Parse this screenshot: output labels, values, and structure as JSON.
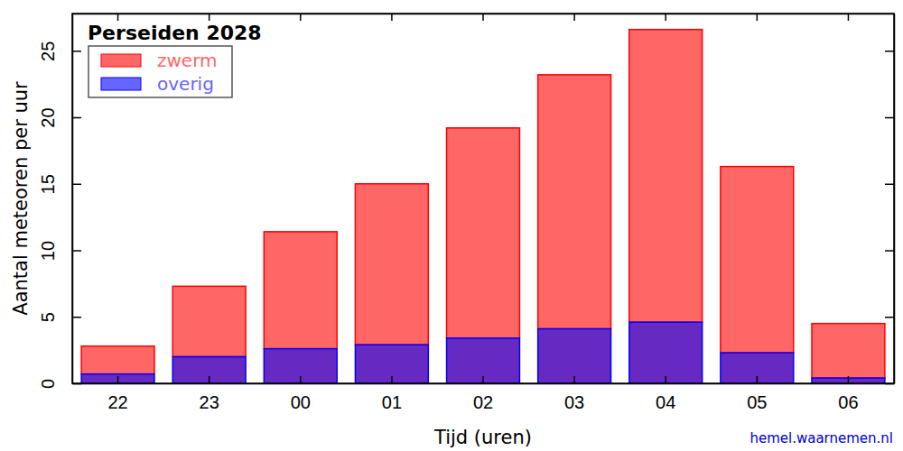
{
  "chart_data": {
    "type": "bar",
    "title": "Perseiden 2028",
    "x_label": "Tijd (uren)",
    "y_label": "Aantal meteoren per uur",
    "source": "hemel.waarnemen.nl",
    "categories": [
      "22",
      "23",
      "00",
      "01",
      "02",
      "03",
      "04",
      "05",
      "06"
    ],
    "series": [
      {
        "name": "zwerm",
        "color": "#ff0000",
        "values": [
          2.1,
          5.3,
          8.8,
          12.1,
          15.8,
          19.1,
          22.0,
          14.0,
          4.1
        ]
      },
      {
        "name": "overig",
        "color": "#0000ff",
        "values": [
          0.7,
          2.0,
          2.6,
          2.9,
          3.4,
          4.1,
          4.6,
          2.3,
          0.4
        ]
      }
    ],
    "stacked": true,
    "legend": "upper left",
    "grid": false,
    "ylim": [
      0,
      27.8
    ],
    "yticks": [
      0,
      5,
      10,
      15,
      20,
      25
    ]
  }
}
